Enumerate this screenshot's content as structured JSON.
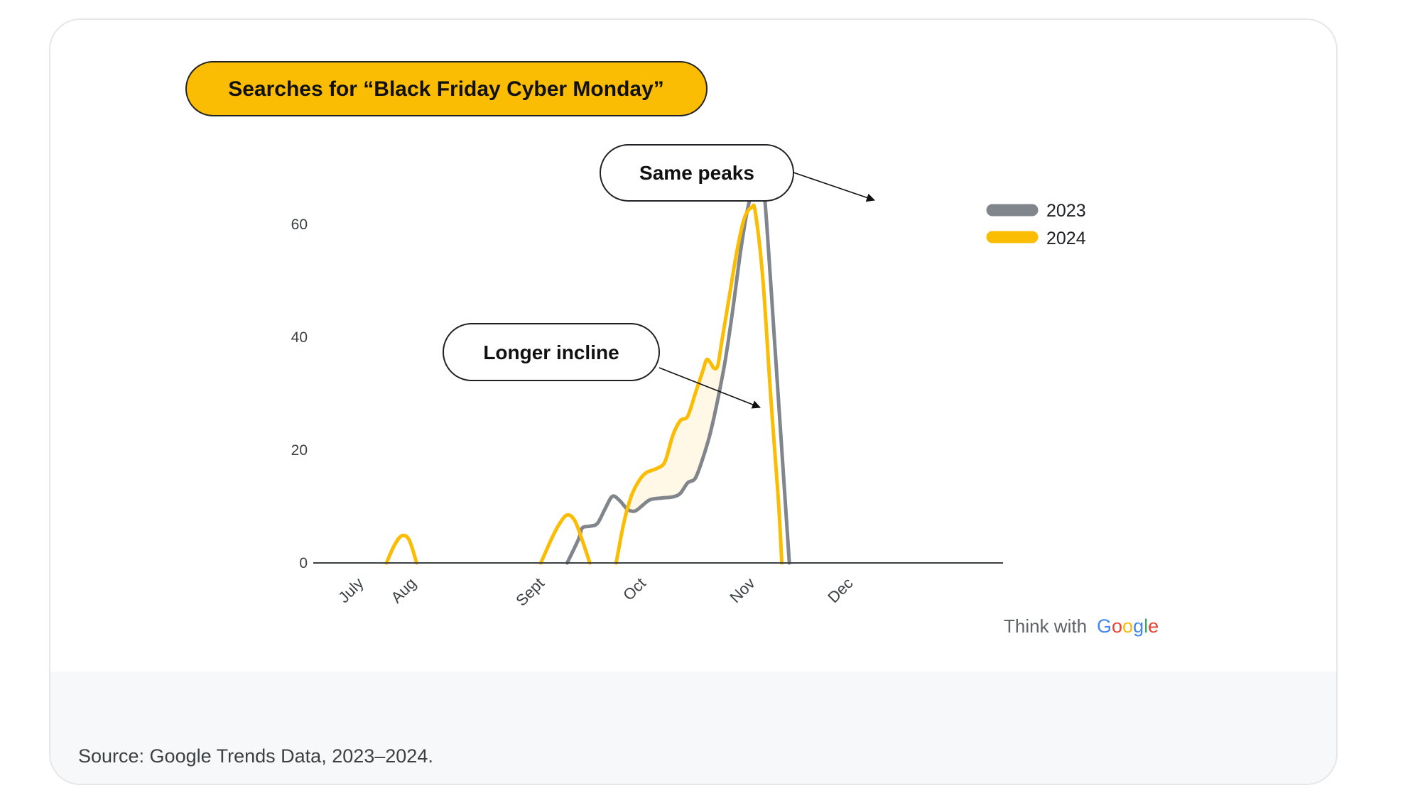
{
  "chart_data": {
    "type": "line",
    "title": "Searches for “Black Friday Cyber Monday”",
    "xlabel": "",
    "ylabel": "",
    "x_ticks": [
      "July",
      "Aug",
      "Sept",
      "Oct",
      "Nov",
      "Dec"
    ],
    "x_tick_days": [
      0,
      14,
      48,
      75,
      104,
      130
    ],
    "y_ticks": [
      0,
      20,
      40,
      60
    ],
    "ylim": [
      0,
      70
    ],
    "legend": "top-right",
    "grid": false,
    "series": [
      {
        "name": "2023",
        "color": "#80868b",
        "segments": [
          [
            [
              55,
              0
            ],
            [
              58,
              4.2
            ],
            [
              59,
              6.2
            ],
            [
              61,
              6.5
            ],
            [
              63,
              7
            ],
            [
              65,
              9.5
            ],
            [
              67,
              11.8
            ],
            [
              69,
              11
            ],
            [
              71,
              9.5
            ],
            [
              73,
              9.2
            ],
            [
              75,
              10.2
            ],
            [
              77,
              11.2
            ],
            [
              80,
              11.5
            ],
            [
              83,
              11.7
            ],
            [
              85,
              12.3
            ],
            [
              87,
              14.2
            ],
            [
              89,
              15
            ],
            [
              91,
              18.5
            ],
            [
              93,
              23
            ],
            [
              95,
              29
            ],
            [
              97,
              36
            ],
            [
              99,
              45
            ],
            [
              101,
              55
            ],
            [
              103,
              63
            ],
            [
              105,
              67
            ],
            [
              107,
              66
            ],
            [
              108,
              60
            ],
            [
              110,
              40
            ],
            [
              112,
              20
            ],
            [
              114,
              0
            ]
          ]
        ]
      },
      {
        "name": "2024",
        "color": "#fbbc04",
        "segments": [
          [
            [
              7,
              0
            ],
            [
              9,
              3
            ],
            [
              11,
              4.8
            ],
            [
              13,
              4.1
            ],
            [
              15,
              0
            ]
          ],
          [
            [
              48,
              0
            ],
            [
              51,
              4.5
            ],
            [
              53,
              7
            ],
            [
              55,
              8.5
            ],
            [
              57,
              7.5
            ],
            [
              59,
              4
            ],
            [
              61,
              0
            ]
          ],
          [
            [
              68,
              0
            ],
            [
              70,
              7
            ],
            [
              72,
              11.8
            ],
            [
              74,
              14.5
            ],
            [
              76,
              16
            ],
            [
              79,
              16.8
            ],
            [
              81,
              18
            ],
            [
              83,
              22.5
            ],
            [
              85,
              25.2
            ],
            [
              87,
              26
            ],
            [
              89,
              30
            ],
            [
              91,
              34
            ],
            [
              92,
              36
            ],
            [
              93,
              35.5
            ],
            [
              94,
              34.5
            ],
            [
              95,
              35
            ],
            [
              96,
              39
            ],
            [
              98,
              47
            ],
            [
              100,
              55
            ],
            [
              102,
              61
            ],
            [
              104,
              63
            ],
            [
              105,
              62
            ],
            [
              107,
              50
            ],
            [
              109,
              30
            ],
            [
              111,
              12
            ],
            [
              112,
              0
            ]
          ]
        ]
      }
    ],
    "annotations": [
      {
        "text": "Same peaks",
        "target": "2023 peak, early Dec"
      },
      {
        "text": "Longer incline",
        "target": "gap between 2024 and 2023, late Oct"
      }
    ]
  },
  "brand": {
    "prefix": "Think with",
    "name": "Google"
  },
  "source": "Source: Google Trends Data, 2023–2024.",
  "colors": {
    "badge_fill": "#fbbc04",
    "shade_fill": "#fff8e6",
    "axis": "#3c4043"
  }
}
